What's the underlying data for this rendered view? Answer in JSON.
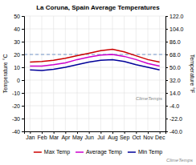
{
  "chart_data": {
    "type": "line",
    "title": "La Coruna, Spain Average Temperatures",
    "ylabel": "Temperature °C",
    "y2label": "Temperature °F",
    "categories": [
      "Jan",
      "Feb",
      "Mar",
      "Apr",
      "May",
      "Jun",
      "Jul",
      "Aug",
      "Sep",
      "Oct",
      "Nov",
      "Dec"
    ],
    "series": [
      {
        "name": "Max Temp",
        "color": "#cc0000",
        "values": [
          14,
          14.5,
          15.5,
          17,
          19,
          21,
          23,
          24,
          22,
          19,
          16,
          14
        ]
      },
      {
        "name": "Average Temp",
        "color": "#cc00cc",
        "values": [
          11,
          11,
          12,
          13.5,
          16,
          18,
          19.5,
          20,
          18.5,
          16,
          13,
          11
        ]
      },
      {
        "name": "Min Temp",
        "color": "#000099",
        "values": [
          8,
          7.5,
          8.5,
          10,
          12,
          14,
          15.5,
          16,
          14.5,
          12,
          10,
          8
        ]
      }
    ],
    "ylim": [
      -40,
      50
    ],
    "yticks": [
      -40,
      -30,
      -20,
      -10,
      0,
      10,
      20,
      30,
      40,
      50
    ],
    "y2lim": [
      -40,
      122
    ],
    "y2ticks": [
      {
        "value": -40,
        "label": "-40.0"
      },
      {
        "value": -22,
        "label": "-22.0"
      },
      {
        "value": -4,
        "label": "-4.0"
      },
      {
        "value": 14,
        "label": "14.0"
      },
      {
        "value": 32,
        "label": "32.0"
      },
      {
        "value": 50,
        "label": "50.0"
      },
      {
        "value": 68,
        "label": "68.0"
      },
      {
        "value": 86,
        "label": "86.0"
      },
      {
        "value": 104,
        "label": "104.0"
      },
      {
        "value": 122,
        "label": "122.0"
      }
    ],
    "reference_line": 20,
    "annotations": [
      "ClimeTemps",
      "ClimeTemps"
    ],
    "grid": true,
    "legend": "bottom"
  }
}
